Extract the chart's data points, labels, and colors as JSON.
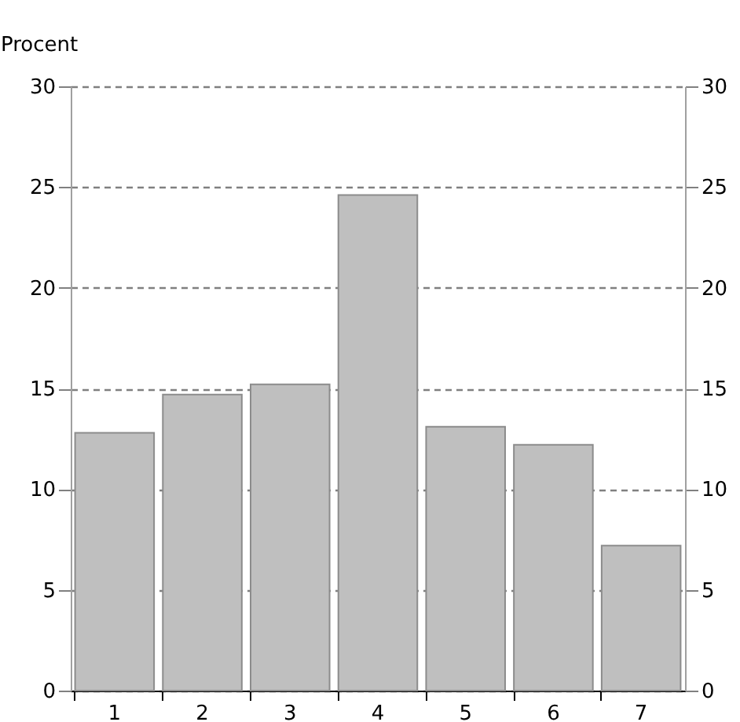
{
  "chart_data": {
    "type": "bar",
    "ylabel": "Procent",
    "categories": [
      "1",
      "2",
      "3",
      "4",
      "5",
      "6",
      "7"
    ],
    "values": [
      12.8,
      14.7,
      15.2,
      24.6,
      13.1,
      12.2,
      7.2
    ],
    "color": "#bfbfbf",
    "ylim": [
      0,
      30
    ],
    "yticks": [
      0,
      5,
      10,
      15,
      20,
      25,
      30
    ],
    "y2lim": [
      0,
      30
    ],
    "y2ticks": [
      0,
      5,
      10,
      15,
      20,
      25,
      30
    ],
    "grid": "y",
    "line_style": "dashed"
  }
}
